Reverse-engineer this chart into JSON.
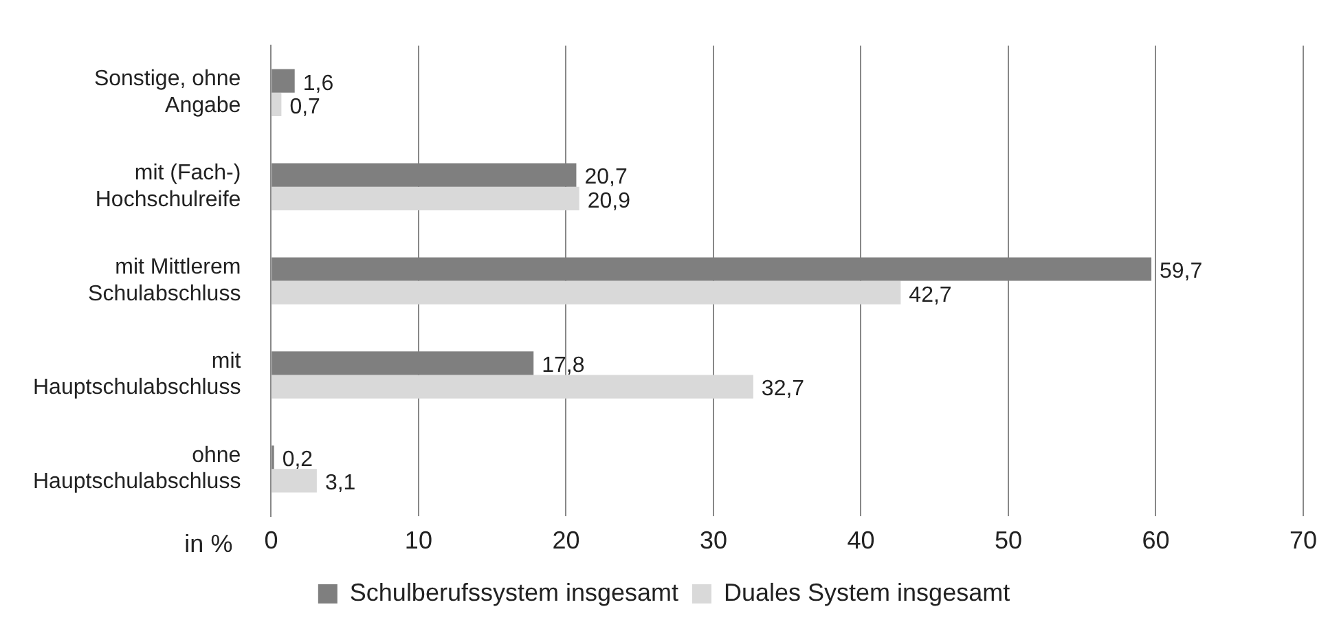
{
  "chart_data": {
    "type": "bar",
    "orientation": "horizontal",
    "xlabel": "in %",
    "categories": [
      "Sonstige, ohne Angabe",
      "mit (Fach-) Hochschulreife",
      "mit Mittlerem Schulabschluss",
      "mit Hauptschulabschluss",
      "ohne Hauptschulabschluss"
    ],
    "series": [
      {
        "name": "Schulberufssystem insgesamt",
        "color": "#7f7f7f",
        "values": [
          1.6,
          20.7,
          59.7,
          17.8,
          0.2
        ],
        "value_labels": [
          "1,6",
          "20,7",
          "59,7",
          "17,8",
          "0,2"
        ]
      },
      {
        "name": "Duales System insgesamt",
        "color": "#d9d9d9",
        "values": [
          0.7,
          20.9,
          42.7,
          32.7,
          3.1
        ],
        "value_labels": [
          "0,7",
          "20,9",
          "42,7",
          "32,7",
          "3,1"
        ]
      }
    ],
    "xlim": [
      0,
      70
    ],
    "xticks": [
      0,
      10,
      20,
      30,
      40,
      50,
      60,
      70
    ],
    "grid": "x",
    "legend": "bottom"
  }
}
